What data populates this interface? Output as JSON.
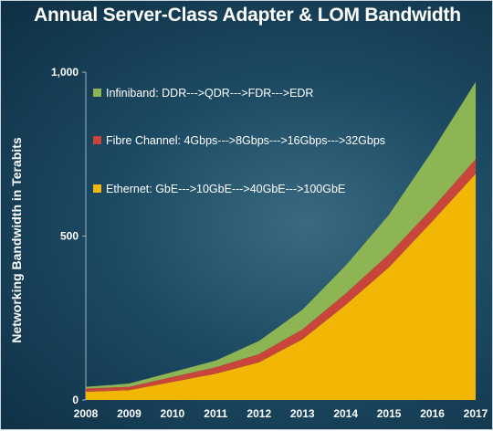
{
  "chart_data": {
    "type": "area",
    "stacked": true,
    "title": "Annual Server-Class Adapter & LOM Bandwidth",
    "ylabel": "Networking Bandwidth in Terabits",
    "xlabel": "",
    "x": [
      2008,
      2009,
      2010,
      2011,
      2012,
      2013,
      2014,
      2015,
      2016,
      2017
    ],
    "x_tick_labels": [
      "2008",
      "2009",
      "2010",
      "2011",
      "2012",
      "2013",
      "2014",
      "2015",
      "2016",
      "2017"
    ],
    "ylim": [
      0,
      1000
    ],
    "y_ticks": [
      0,
      500,
      1000
    ],
    "y_tick_labels": [
      "0",
      "500",
      "1,000"
    ],
    "legend_position": "top-left",
    "series": [
      {
        "name": "Ethernet: GbE--->10GbE--->40GbE--->100GbE",
        "color": "#f2b705",
        "values": [
          25,
          30,
          55,
          80,
          115,
          185,
          290,
          405,
          545,
          690
        ]
      },
      {
        "name": "Fibre Channel: 4Gbps--->8Gbps--->16Gbps--->32Gbps",
        "color": "#c8453c",
        "values": [
          10,
          10,
          15,
          20,
          25,
          30,
          35,
          40,
          40,
          45
        ]
      },
      {
        "name": "Infiniband: DDR--->QDR--->FDR--->EDR",
        "color": "#8db553",
        "values": [
          5,
          10,
          15,
          20,
          40,
          60,
          85,
          120,
          175,
          235
        ]
      }
    ]
  }
}
